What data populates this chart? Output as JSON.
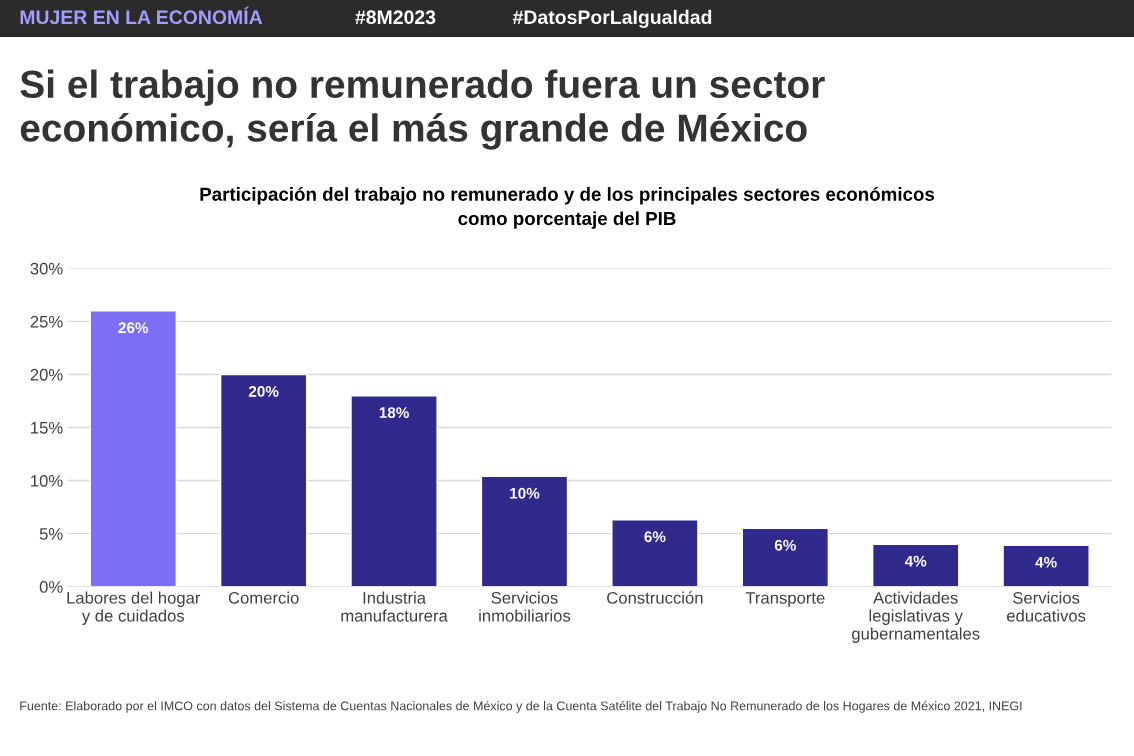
{
  "chart_data": {
    "type": "bar",
    "title": "Si el trabajo no remunerado fuera un sector\neconómico, sería el más grande de México",
    "subtitle": "Participación del trabajo no remunerado y de los principales sectores económicos\ncomo porcentaje del PIB",
    "categories": [
      "Labores del hogar\ny de cuidados",
      "Comercio",
      "Industria\nmanufacturera",
      "Servicios\ninmobiliarios",
      "Construcción",
      "Transporte",
      "Actividades\nlegislativas y\ngubernamentales",
      "Servicios\neducativos"
    ],
    "values": [
      26.0,
      20.0,
      18.0,
      10.4,
      6.3,
      5.5,
      4.0,
      3.9
    ],
    "value_labels": [
      "26%",
      "20%",
      "18%",
      "10%",
      "6%",
      "6%",
      "4%",
      "4%"
    ],
    "colors": [
      "#7b70f5",
      "#2f2a8c",
      "#2f2a8c",
      "#2f2a8c",
      "#2f2a8c",
      "#2f2a8c",
      "#2f2a8c",
      "#2f2a8c"
    ],
    "ylim": [
      0,
      30
    ],
    "yticks": [
      {
        "value": 0,
        "label": "0%"
      },
      {
        "value": 5,
        "label": "5%"
      },
      {
        "value": 10,
        "label": "10%"
      },
      {
        "value": 15,
        "label": "15%"
      },
      {
        "value": 20,
        "label": "20%"
      },
      {
        "value": 25,
        "label": "25%"
      },
      {
        "value": 30,
        "label": "30%"
      }
    ],
    "grid": "y",
    "legend": false,
    "annotations": [
      "MUJER EN LA ECONOMÍA",
      "#8M2023",
      "#DatosPorLaIgualdad",
      "Fuente: Elaborado por el IMCO con datos del Sistema de Cuentas Nacionales de México y de la Cuenta Satélite del Trabajo No Remunerado de los Hogares de México 2021, INEGI"
    ]
  }
}
